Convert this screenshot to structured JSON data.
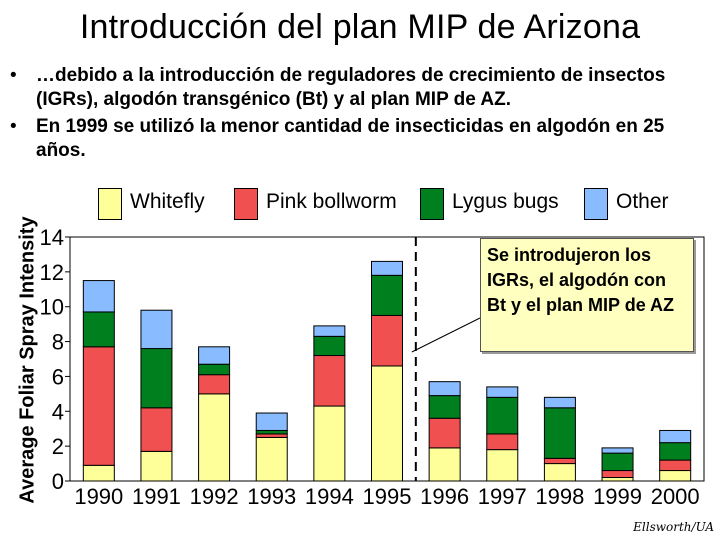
{
  "page": {
    "title": "Introducción del plan MIP de Arizona",
    "bullets": [
      "…debido a la introducción de reguladores de crecimiento de insectos (IGRs), algodón transgénico (Bt) y al plan MIP de AZ.",
      "En 1999 se utilizó la menor cantidad de insecticidas en algodón en 25 años."
    ],
    "bullet_symbol": "•",
    "callout": "Se introdujeron los IGRs, el algodón con Bt y el plan MIP de AZ",
    "credit": "Ellsworth/UA"
  },
  "chart_data": {
    "type": "bar",
    "stacked": true,
    "title": "",
    "xlabel": "",
    "ylabel": "Average Foliar Spray Intensity",
    "ylim": [
      0,
      14
    ],
    "yticks": [
      0,
      2,
      4,
      6,
      8,
      10,
      12,
      14
    ],
    "grid": false,
    "legend_position": "top",
    "categories": [
      "1990",
      "1991",
      "1992",
      "1993",
      "1994",
      "1995",
      "1996",
      "1997",
      "1998",
      "1999",
      "2000"
    ],
    "series": [
      {
        "name": "Whitefly",
        "color": "#ffff99",
        "values": [
          0.9,
          1.7,
          5.0,
          2.5,
          4.3,
          6.6,
          1.9,
          1.8,
          1.0,
          0.2,
          0.6
        ]
      },
      {
        "name": "Pink bollworm",
        "color": "#f05050",
        "values": [
          6.8,
          2.5,
          1.1,
          0.2,
          2.9,
          2.9,
          1.7,
          0.9,
          0.3,
          0.4,
          0.6
        ]
      },
      {
        "name": "Lygus bugs",
        "color": "#007f1f",
        "values": [
          2.0,
          3.4,
          0.6,
          0.2,
          1.1,
          2.3,
          1.3,
          2.1,
          2.9,
          1.0,
          1.0
        ]
      },
      {
        "name": "Other",
        "color": "#88bbff",
        "values": [
          1.8,
          2.2,
          1.0,
          1.0,
          0.6,
          0.8,
          0.8,
          0.6,
          0.6,
          0.3,
          0.7
        ]
      }
    ],
    "annotation": {
      "type": "vertical-dashed-line",
      "between": [
        "1995",
        "1996"
      ]
    }
  }
}
